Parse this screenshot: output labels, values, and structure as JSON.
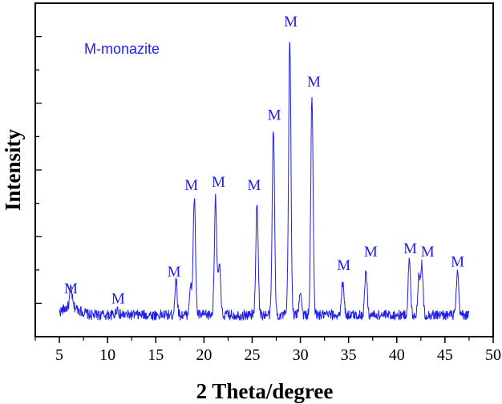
{
  "chart_data": {
    "type": "line",
    "xlabel": "2 Theta/degree",
    "ylabel": "Intensity",
    "annotation": "M-monazite",
    "xlim": [
      2.5,
      50
    ],
    "ylim": [
      0,
      100
    ],
    "x_ticks": [
      5,
      10,
      15,
      20,
      25,
      30,
      35,
      40,
      45,
      50
    ],
    "y_ticks_shown": false,
    "grid": false,
    "series": [
      {
        "color": "#1f1fe6",
        "x_range": [
          5,
          47.5
        ],
        "baseline": 6.5,
        "peaks": [
          {
            "x": 6.2,
            "y": 12
          },
          {
            "x": 11.0,
            "y": 8.5
          },
          {
            "x": 17.1,
            "y": 17
          },
          {
            "x": 18.6,
            "y": 15
          },
          {
            "x": 19.0,
            "y": 42
          },
          {
            "x": 21.2,
            "y": 42
          },
          {
            "x": 21.6,
            "y": 22
          },
          {
            "x": 25.5,
            "y": 41
          },
          {
            "x": 27.2,
            "y": 63
          },
          {
            "x": 28.9,
            "y": 89
          },
          {
            "x": 30.0,
            "y": 14
          },
          {
            "x": 31.2,
            "y": 72
          },
          {
            "x": 34.4,
            "y": 17
          },
          {
            "x": 36.8,
            "y": 20
          },
          {
            "x": 41.3,
            "y": 23
          },
          {
            "x": 42.3,
            "y": 18
          },
          {
            "x": 42.6,
            "y": 21
          },
          {
            "x": 46.3,
            "y": 19
          }
        ]
      }
    ],
    "peak_labels": [
      {
        "text": "M",
        "x": 6.2,
        "y": 13
      },
      {
        "text": "M",
        "x": 11.1,
        "y": 10
      },
      {
        "text": "M",
        "x": 16.9,
        "y": 18
      },
      {
        "text": "M",
        "x": 18.7,
        "y": 44
      },
      {
        "text": "M",
        "x": 21.5,
        "y": 45
      },
      {
        "text": "M",
        "x": 25.2,
        "y": 44
      },
      {
        "text": "M",
        "x": 27.3,
        "y": 65
      },
      {
        "text": "M",
        "x": 29.0,
        "y": 93
      },
      {
        "text": "M",
        "x": 31.4,
        "y": 75
      },
      {
        "text": "M",
        "x": 34.5,
        "y": 20
      },
      {
        "text": "M",
        "x": 37.3,
        "y": 24
      },
      {
        "text": "M",
        "x": 41.4,
        "y": 25
      },
      {
        "text": "M",
        "x": 43.2,
        "y": 24
      },
      {
        "text": "M",
        "x": 46.3,
        "y": 21
      }
    ]
  }
}
